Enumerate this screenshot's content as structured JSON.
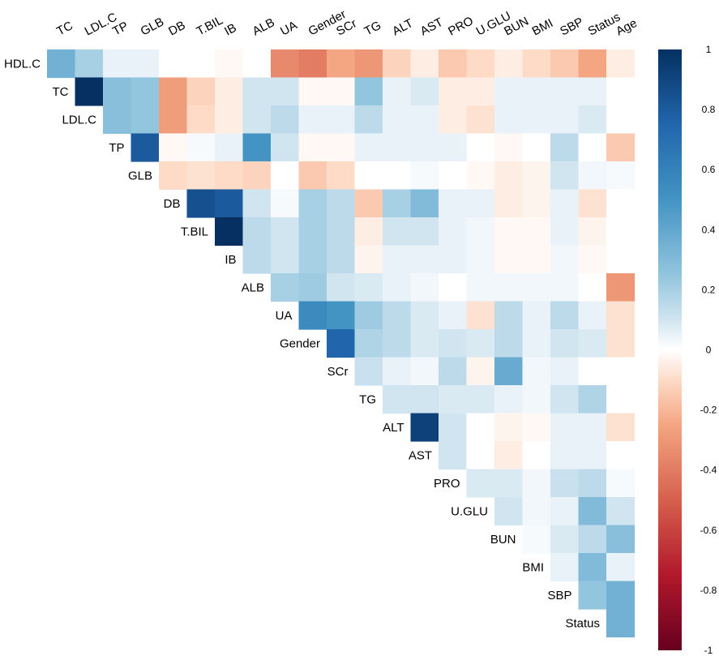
{
  "chart_data": {
    "type": "heatmap",
    "subtype": "correlation-matrix-upper-triangle",
    "title": "",
    "variables": [
      "HDL.C",
      "TC",
      "LDL.C",
      "TP",
      "GLB",
      "DB",
      "T.BIL",
      "IB",
      "ALB",
      "UA",
      "Gender",
      "SCr",
      "TG",
      "ALT",
      "AST",
      "PRO",
      "U.GLU",
      "BUN",
      "BMI",
      "SBP",
      "Status",
      "Age"
    ],
    "rows": [
      {
        "var": "HDL.C",
        "values": [
          0.35,
          0.2,
          0.05,
          0.05,
          0.0,
          0.0,
          -0.02,
          0.0,
          -0.35,
          -0.4,
          -0.25,
          -0.3,
          -0.12,
          -0.05,
          -0.15,
          -0.1,
          -0.05,
          -0.1,
          -0.15,
          -0.25,
          -0.05
        ]
      },
      {
        "var": "TC",
        "values": [
          1.0,
          0.28,
          0.25,
          -0.28,
          -0.12,
          -0.05,
          0.1,
          0.1,
          -0.02,
          -0.02,
          0.25,
          0.05,
          0.08,
          -0.05,
          -0.05,
          0.05,
          0.05,
          0.05,
          0.05,
          0.0
        ]
      },
      {
        "var": "LDL.C",
        "values": [
          0.28,
          0.25,
          -0.28,
          -0.1,
          -0.05,
          0.1,
          0.15,
          0.05,
          0.05,
          0.15,
          0.05,
          0.05,
          -0.05,
          -0.08,
          0.05,
          0.05,
          0.05,
          0.08,
          0.0
        ]
      },
      {
        "var": "TP",
        "values": [
          0.8,
          -0.02,
          0.02,
          0.05,
          0.5,
          0.1,
          -0.02,
          -0.02,
          0.05,
          0.05,
          0.05,
          0.05,
          0.0,
          -0.02,
          0.0,
          0.15,
          0.0,
          -0.15
        ]
      },
      {
        "var": "GLB",
        "values": [
          -0.1,
          -0.08,
          -0.1,
          -0.12,
          0.0,
          -0.15,
          -0.1,
          0.0,
          0.0,
          0.02,
          0.0,
          -0.02,
          -0.05,
          -0.03,
          0.1,
          0.03,
          0.02
        ]
      },
      {
        "var": "DB",
        "values": [
          0.85,
          0.8,
          0.1,
          0.02,
          0.2,
          0.15,
          -0.15,
          0.2,
          0.3,
          0.05,
          0.05,
          -0.05,
          -0.03,
          0.05,
          -0.08,
          0.0
        ]
      },
      {
        "var": "T.BIL",
        "values": [
          1.0,
          0.15,
          0.1,
          0.2,
          0.15,
          -0.05,
          0.1,
          0.1,
          0.05,
          0.03,
          -0.02,
          -0.02,
          0.05,
          -0.03,
          0.0
        ]
      },
      {
        "var": "IB",
        "values": [
          0.15,
          0.1,
          0.2,
          0.15,
          -0.03,
          0.05,
          0.05,
          0.05,
          0.03,
          -0.02,
          -0.02,
          0.03,
          -0.02,
          0.0
        ]
      },
      {
        "var": "ALB",
        "values": [
          0.2,
          0.22,
          0.1,
          0.08,
          0.05,
          0.03,
          0.0,
          0.03,
          0.03,
          0.03,
          0.03,
          0.0,
          -0.3
        ]
      },
      {
        "var": "UA",
        "values": [
          0.55,
          0.5,
          0.22,
          0.15,
          0.08,
          0.05,
          -0.08,
          0.15,
          0.05,
          0.15,
          0.05,
          -0.08
        ]
      },
      {
        "var": "Gender",
        "values": [
          0.75,
          0.18,
          0.15,
          0.08,
          0.1,
          0.08,
          0.15,
          0.05,
          0.1,
          0.08,
          -0.08
        ]
      },
      {
        "var": "SCr",
        "values": [
          0.12,
          0.05,
          0.03,
          0.15,
          -0.03,
          0.38,
          0.03,
          0.05,
          0.0,
          0.0
        ]
      },
      {
        "var": "TG",
        "values": [
          0.1,
          0.1,
          0.08,
          0.08,
          0.05,
          0.03,
          0.1,
          0.18,
          0.0
        ]
      },
      {
        "var": "ALT",
        "values": [
          0.92,
          0.1,
          0.0,
          -0.03,
          -0.02,
          0.05,
          0.05,
          -0.08
        ]
      },
      {
        "var": "AST",
        "values": [
          0.1,
          0.0,
          -0.05,
          0.0,
          0.05,
          0.05,
          0.0
        ]
      },
      {
        "var": "PRO",
        "values": [
          0.08,
          0.08,
          0.03,
          0.12,
          0.15,
          0.02
        ]
      },
      {
        "var": "U.GLU",
        "values": [
          0.1,
          0.03,
          0.05,
          0.3,
          0.1
        ]
      },
      {
        "var": "BUN",
        "values": [
          0.02,
          0.08,
          0.15,
          0.28
        ]
      },
      {
        "var": "BMI",
        "values": [
          0.05,
          0.3,
          0.05
        ]
      },
      {
        "var": "SBP",
        "values": [
          0.25,
          0.35
        ]
      },
      {
        "var": "Status",
        "values": [
          0.35
        ]
      }
    ],
    "color_scale": {
      "min": -1,
      "max": 1,
      "neg_color": "#67001f",
      "mid_color": "#ffffff",
      "pos_color": "#053061",
      "ticks": [
        "1",
        "0.8",
        "0.6",
        "0.4",
        "0.2",
        "0",
        "-0.2",
        "-0.4",
        "-0.6",
        "-0.8",
        "-1"
      ]
    }
  }
}
